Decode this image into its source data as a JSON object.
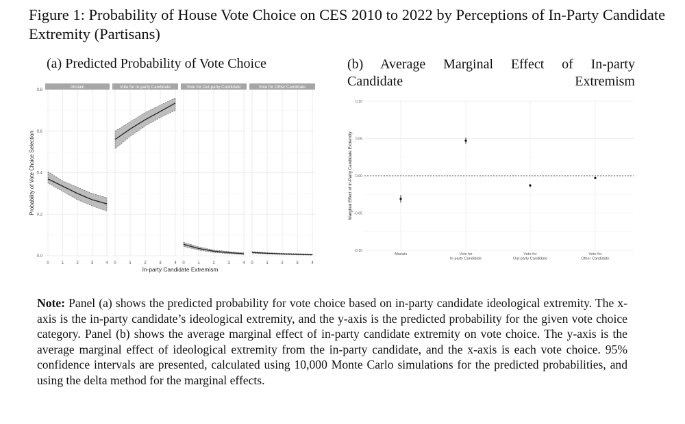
{
  "figure_title": "Figure 1: Probability of House Vote Choice on CES 2010 to 2022 by Perceptions of In-Party Candidate Extremity (Partisans)",
  "panel_a_caption": "(a) Predicted Probability of Vote Choice",
  "panel_b_caption_line1": "(b) Average Marginal Effect of In-party",
  "panel_b_caption_line2": "Candidate Extremism",
  "note_label": "Note:",
  "note_text": " Panel (a) shows the predicted probability for vote choice based on in-party candidate ideological extremity. The x-axis is the in-party candidate’s ideological extremity, and the y-axis is the predicted probability for the given vote choice category. Panel (b) shows the average marginal effect of in-party candidate extremity on vote choice. The y-axis is the average marginal effect of ideological extremity from the in-party candidate, and the x-axis is each vote choice. 95% confidence intervals are presented, calculated using 10,000 Monte Carlo simulations for the predicted probabilities, and using the delta method for the marginal effects.",
  "chart_data": [
    {
      "type": "line",
      "xlabel": "In-party Candidate Extremism",
      "ylabel": "Probability of Vote Choice Selection",
      "xlim": [
        0,
        4
      ],
      "ylim": [
        0,
        0.8
      ],
      "x_ticks": [
        "0",
        "1",
        "2",
        "3",
        "4"
      ],
      "y_ticks": [
        "0.0",
        "0.2",
        "0.4",
        "0.6",
        "0.8"
      ],
      "grid": true,
      "facets": [
        {
          "name": "Abstain",
          "x": [
            0,
            1,
            2,
            3,
            4
          ],
          "y": [
            0.37,
            0.335,
            0.3,
            0.27,
            0.25
          ],
          "lower": [
            0.35,
            0.31,
            0.27,
            0.24,
            0.215
          ],
          "upper": [
            0.405,
            0.36,
            0.33,
            0.3,
            0.28
          ]
        },
        {
          "name": "Vote for In-party Candidate",
          "x": [
            0,
            1,
            2,
            3,
            4
          ],
          "y": [
            0.56,
            0.61,
            0.655,
            0.695,
            0.735
          ],
          "lower": [
            0.515,
            0.575,
            0.625,
            0.665,
            0.7
          ],
          "upper": [
            0.6,
            0.645,
            0.69,
            0.725,
            0.76
          ]
        },
        {
          "name": "Vote for Out-party Candidate",
          "x": [
            0,
            1,
            2,
            3,
            4
          ],
          "y": [
            0.055,
            0.035,
            0.022,
            0.015,
            0.01
          ],
          "lower": [
            0.045,
            0.027,
            0.016,
            0.01,
            0.006
          ],
          "upper": [
            0.065,
            0.043,
            0.028,
            0.02,
            0.014
          ]
        },
        {
          "name": "Vote for Other Candidate",
          "x": [
            0,
            1,
            2,
            3,
            4
          ],
          "y": [
            0.016,
            0.012,
            0.009,
            0.007,
            0.005
          ],
          "lower": [
            0.012,
            0.009,
            0.006,
            0.004,
            0.003
          ],
          "upper": [
            0.02,
            0.015,
            0.012,
            0.01,
            0.008
          ]
        }
      ]
    },
    {
      "type": "scatter",
      "ylabel": "Marginal Effect of In-Party Candidate Extremity",
      "ylim": [
        -0.1,
        0.1
      ],
      "y_ticks": [
        "-0.10",
        "-0.05",
        "0.00",
        "0.05",
        "0.10"
      ],
      "categories": [
        [
          "Abstain"
        ],
        [
          "Vote for",
          "In-party Candidate"
        ],
        [
          "Vote for",
          "Out-party Candidate"
        ],
        [
          "Vote for",
          "Other Candidate"
        ]
      ],
      "values": [
        -0.031,
        0.047,
        -0.013,
        -0.003
      ],
      "lower": [
        -0.036,
        0.043,
        -0.015,
        -0.004
      ],
      "upper": [
        -0.026,
        0.051,
        -0.011,
        -0.002
      ],
      "reference_line": 0,
      "grid": true
    }
  ]
}
